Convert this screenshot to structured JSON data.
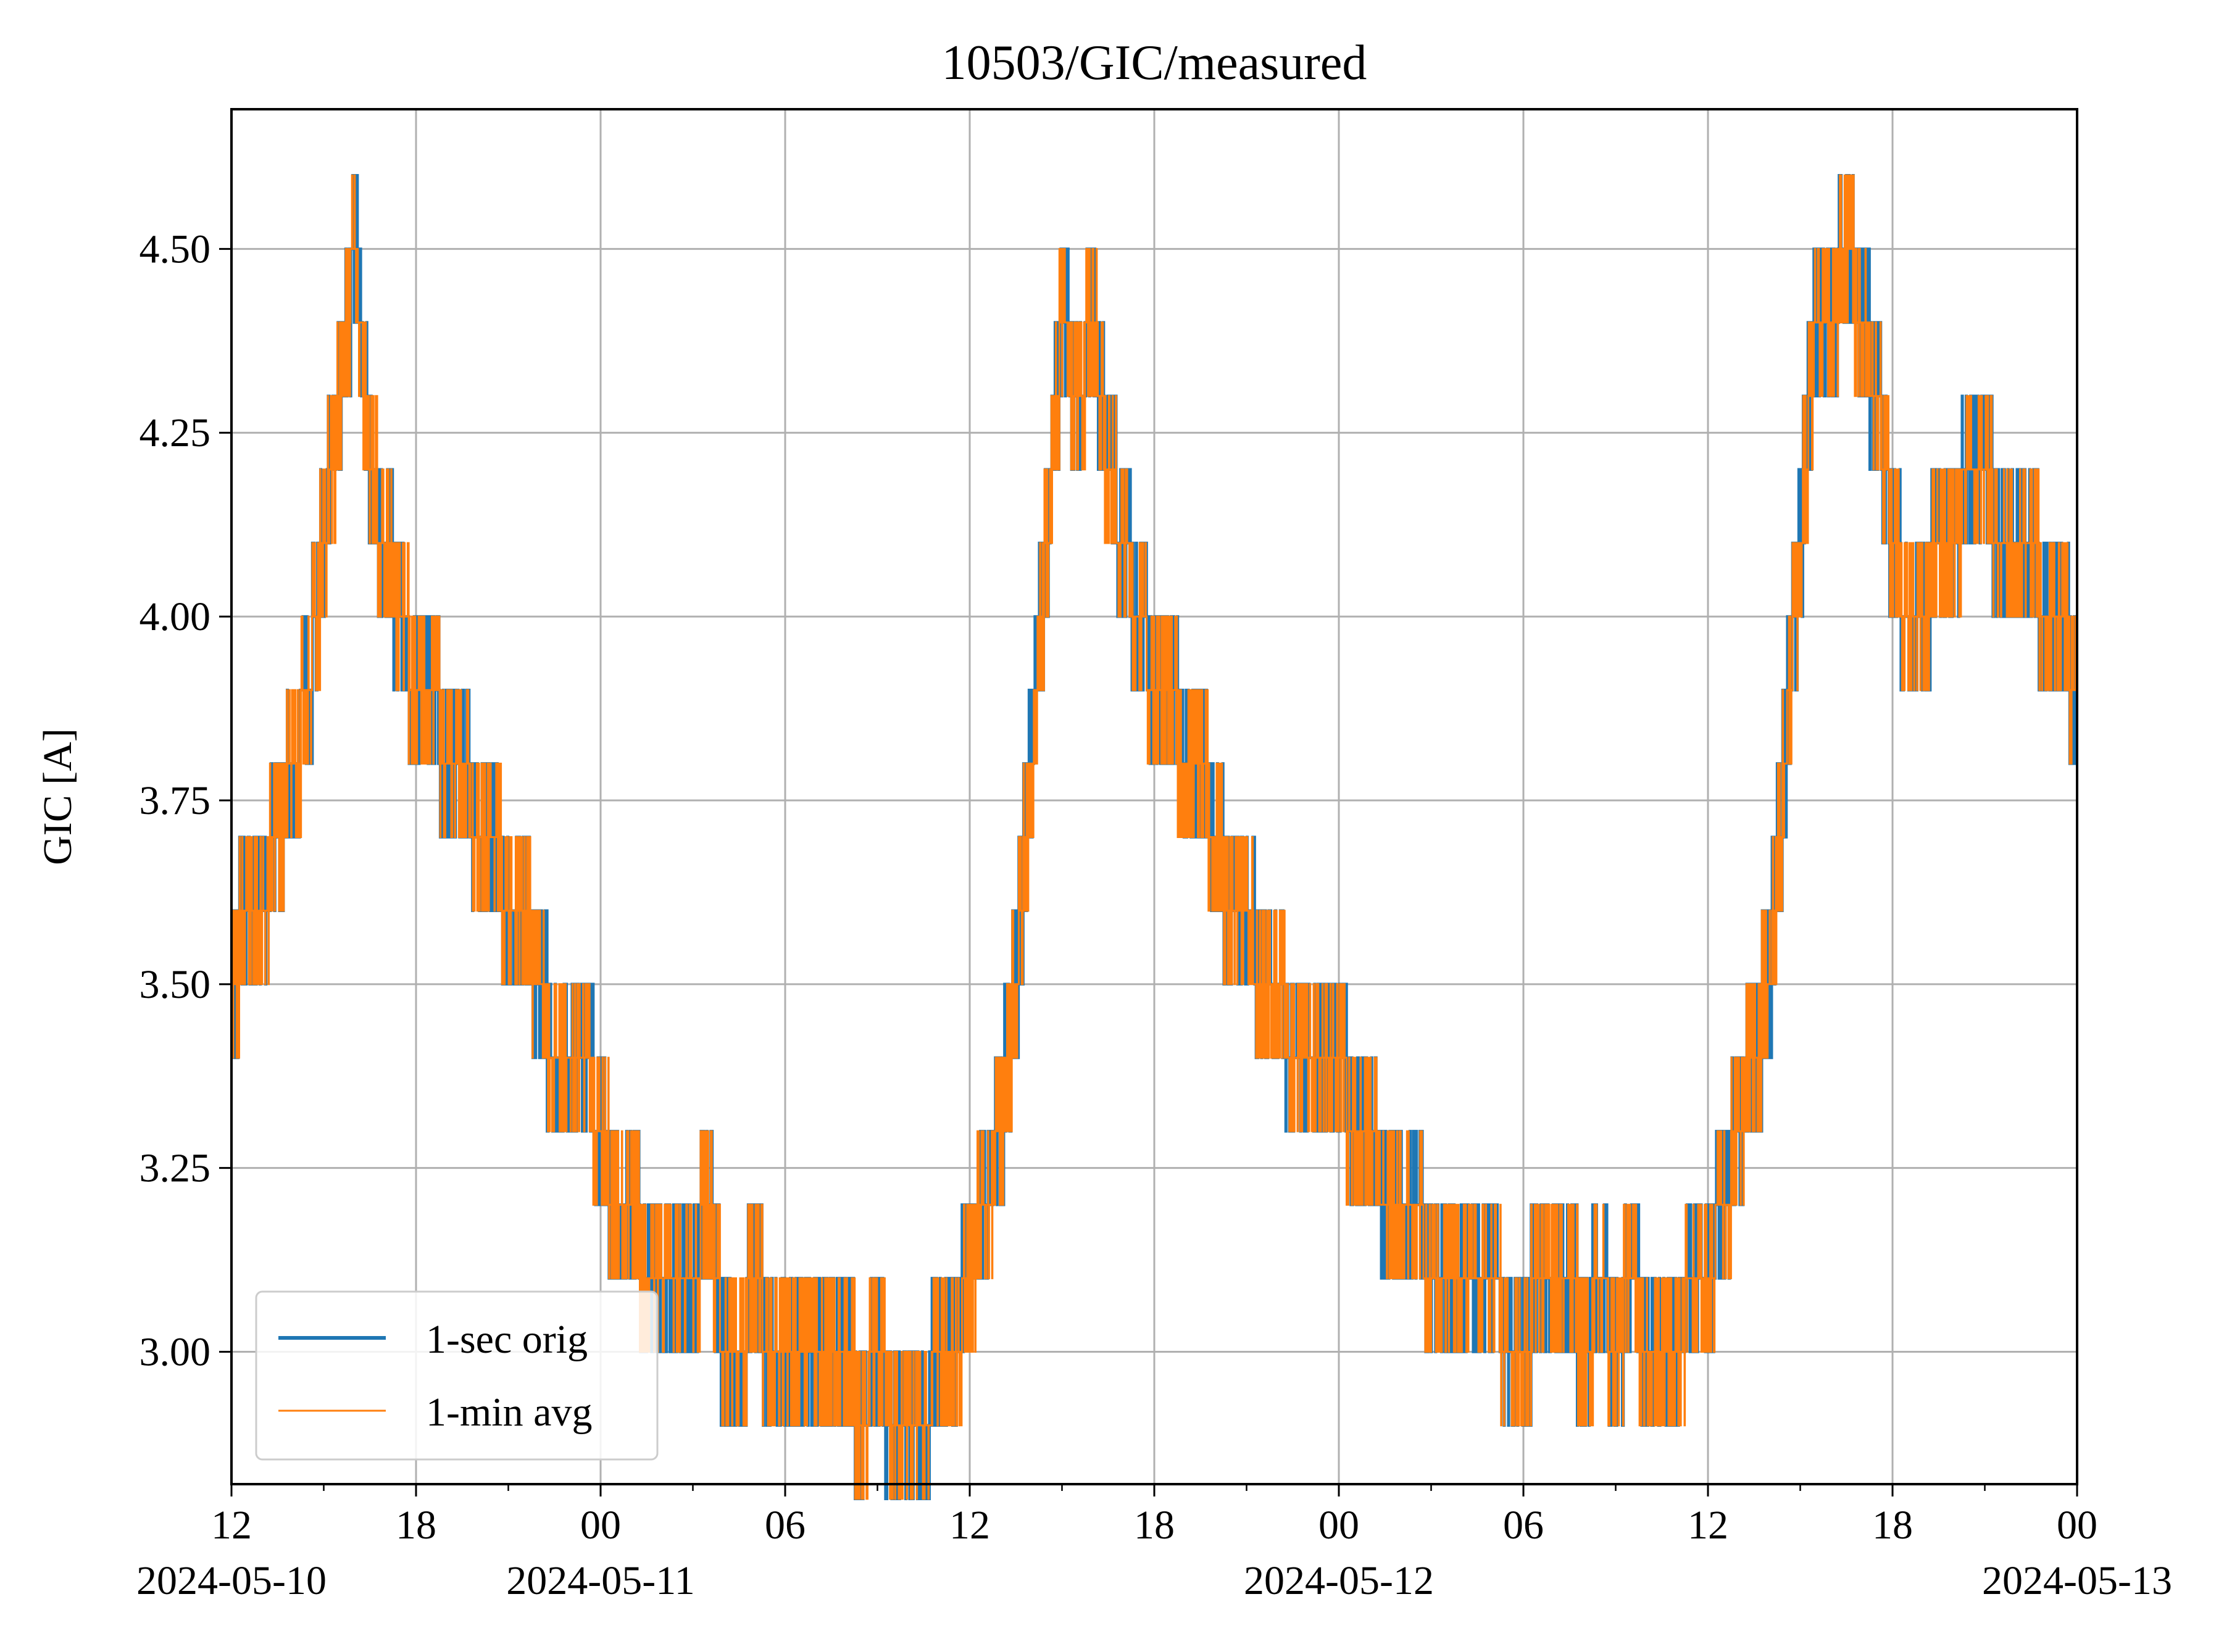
{
  "chart_data": {
    "type": "line",
    "title": "10503/GIC/measured",
    "xlabel": "",
    "ylabel": "GIC [A]",
    "x_range": [
      "2024-05-10T12:00",
      "2024-05-13T00:00"
    ],
    "ylim": [
      2.82,
      4.69
    ],
    "grid": true,
    "legend_position": "lower-left",
    "y_ticks": [
      "3.00",
      "3.25",
      "3.50",
      "3.75",
      "4.00",
      "4.25",
      "4.50"
    ],
    "x_ticks": [
      {
        "time": "2024-05-10T12:00",
        "label": "12",
        "date": "2024-05-10"
      },
      {
        "time": "2024-05-10T18:00",
        "label": "18",
        "date": ""
      },
      {
        "time": "2024-05-11T00:00",
        "label": "00",
        "date": "2024-05-11"
      },
      {
        "time": "2024-05-11T06:00",
        "label": "06",
        "date": ""
      },
      {
        "time": "2024-05-11T12:00",
        "label": "12",
        "date": ""
      },
      {
        "time": "2024-05-11T18:00",
        "label": "18",
        "date": ""
      },
      {
        "time": "2024-05-12T00:00",
        "label": "00",
        "date": "2024-05-12"
      },
      {
        "time": "2024-05-12T06:00",
        "label": "06",
        "date": ""
      },
      {
        "time": "2024-05-12T12:00",
        "label": "12",
        "date": ""
      },
      {
        "time": "2024-05-12T18:00",
        "label": "18",
        "date": ""
      },
      {
        "time": "2024-05-13T00:00",
        "label": "00",
        "date": "2024-05-13"
      }
    ],
    "series": [
      {
        "name": "1-sec orig",
        "color": "#1f77b4",
        "x": [
          "2024-05-10T12:00",
          "2024-05-10T12:30",
          "2024-05-10T13:00",
          "2024-05-10T13:30",
          "2024-05-10T14:00",
          "2024-05-10T14:30",
          "2024-05-10T15:00",
          "2024-05-10T15:30",
          "2024-05-10T16:00",
          "2024-05-10T16:30",
          "2024-05-10T17:00",
          "2024-05-10T17:30",
          "2024-05-10T18:00",
          "2024-05-10T18:30",
          "2024-05-10T19:00",
          "2024-05-10T19:30",
          "2024-05-10T20:00",
          "2024-05-10T20:30",
          "2024-05-10T21:00",
          "2024-05-10T21:30",
          "2024-05-10T22:00",
          "2024-05-10T22:30",
          "2024-05-10T23:00",
          "2024-05-10T23:30",
          "2024-05-11T00:00",
          "2024-05-11T00:30",
          "2024-05-11T01:00",
          "2024-05-11T01:30",
          "2024-05-11T02:00",
          "2024-05-11T02:30",
          "2024-05-11T03:00",
          "2024-05-11T03:30",
          "2024-05-11T04:00",
          "2024-05-11T04:30",
          "2024-05-11T05:00",
          "2024-05-11T05:30",
          "2024-05-11T06:00",
          "2024-05-11T06:30",
          "2024-05-11T07:00",
          "2024-05-11T07:30",
          "2024-05-11T08:00",
          "2024-05-11T08:30",
          "2024-05-11T09:00",
          "2024-05-11T09:30",
          "2024-05-11T10:00",
          "2024-05-11T10:30",
          "2024-05-11T11:00",
          "2024-05-11T11:30",
          "2024-05-11T12:00",
          "2024-05-11T12:30",
          "2024-05-11T13:00",
          "2024-05-11T13:30",
          "2024-05-11T14:00",
          "2024-05-11T14:30",
          "2024-05-11T15:00",
          "2024-05-11T15:30",
          "2024-05-11T16:00",
          "2024-05-11T16:30",
          "2024-05-11T17:00",
          "2024-05-11T17:30",
          "2024-05-11T18:00",
          "2024-05-11T18:30",
          "2024-05-11T19:00",
          "2024-05-11T19:30",
          "2024-05-11T20:00",
          "2024-05-11T20:30",
          "2024-05-11T21:00",
          "2024-05-11T21:30",
          "2024-05-11T22:00",
          "2024-05-11T22:30",
          "2024-05-11T23:00",
          "2024-05-11T23:30",
          "2024-05-12T00:00",
          "2024-05-12T00:30",
          "2024-05-12T01:00",
          "2024-05-12T01:30",
          "2024-05-12T02:00",
          "2024-05-12T02:30",
          "2024-05-12T03:00",
          "2024-05-12T03:30",
          "2024-05-12T04:00",
          "2024-05-12T04:30",
          "2024-05-12T05:00",
          "2024-05-12T05:30",
          "2024-05-12T06:00",
          "2024-05-12T06:30",
          "2024-05-12T07:00",
          "2024-05-12T07:30",
          "2024-05-12T08:00",
          "2024-05-12T08:30",
          "2024-05-12T09:00",
          "2024-05-12T09:30",
          "2024-05-12T10:00",
          "2024-05-12T10:30",
          "2024-05-12T11:00",
          "2024-05-12T11:30",
          "2024-05-12T12:00",
          "2024-05-12T12:30",
          "2024-05-12T13:00",
          "2024-05-12T13:30",
          "2024-05-12T14:00",
          "2024-05-12T14:30",
          "2024-05-12T15:00",
          "2024-05-12T15:30",
          "2024-05-12T16:00",
          "2024-05-12T16:30",
          "2024-05-12T17:00",
          "2024-05-12T17:30",
          "2024-05-12T18:00",
          "2024-05-12T18:30",
          "2024-05-12T19:00",
          "2024-05-12T19:30",
          "2024-05-12T20:00",
          "2024-05-12T20:30",
          "2024-05-12T21:00",
          "2024-05-12T21:30",
          "2024-05-12T22:00",
          "2024-05-12T22:30",
          "2024-05-12T23:00",
          "2024-05-12T23:30",
          "2024-05-13T00:00"
        ],
        "y": [
          3.5,
          3.6,
          3.6,
          3.7,
          3.8,
          3.9,
          4.1,
          4.3,
          4.5,
          4.2,
          4.1,
          4.0,
          3.9,
          3.9,
          3.8,
          3.8,
          3.7,
          3.7,
          3.6,
          3.6,
          3.5,
          3.4,
          3.4,
          3.4,
          3.3,
          3.2,
          3.2,
          3.1,
          3.1,
          3.1,
          3.1,
          3.2,
          3.0,
          3.0,
          3.1,
          3.0,
          3.0,
          3.0,
          3.0,
          3.0,
          3.0,
          2.9,
          3.0,
          2.9,
          2.9,
          2.9,
          3.0,
          3.0,
          3.1,
          3.2,
          3.3,
          3.5,
          3.8,
          4.1,
          4.4,
          4.3,
          4.4,
          4.2,
          4.1,
          4.0,
          3.9,
          3.9,
          3.8,
          3.8,
          3.7,
          3.6,
          3.6,
          3.5,
          3.5,
          3.4,
          3.4,
          3.4,
          3.4,
          3.3,
          3.3,
          3.2,
          3.2,
          3.2,
          3.1,
          3.1,
          3.1,
          3.1,
          3.1,
          3.0,
          3.0,
          3.1,
          3.1,
          3.1,
          3.0,
          3.1,
          3.0,
          3.1,
          3.0,
          3.0,
          3.0,
          3.1,
          3.1,
          3.2,
          3.3,
          3.4,
          3.5,
          3.8,
          4.1,
          4.4,
          4.4,
          4.5,
          4.4,
          4.3,
          4.1,
          4.0,
          4.0,
          4.1,
          4.1,
          4.2,
          4.2,
          4.1,
          4.1,
          4.1,
          4.0,
          4.0,
          3.9
        ]
      },
      {
        "name": "1-min avg",
        "color": "#ff7f0e",
        "x": [
          "2024-05-10T12:00",
          "2024-05-10T12:30",
          "2024-05-10T13:00",
          "2024-05-10T13:30",
          "2024-05-10T14:00",
          "2024-05-10T14:30",
          "2024-05-10T15:00",
          "2024-05-10T15:30",
          "2024-05-10T16:00",
          "2024-05-10T16:30",
          "2024-05-10T17:00",
          "2024-05-10T17:30",
          "2024-05-10T18:00",
          "2024-05-10T18:30",
          "2024-05-10T19:00",
          "2024-05-10T19:30",
          "2024-05-10T20:00",
          "2024-05-10T20:30",
          "2024-05-10T21:00",
          "2024-05-10T21:30",
          "2024-05-10T22:00",
          "2024-05-10T22:30",
          "2024-05-10T23:00",
          "2024-05-10T23:30",
          "2024-05-11T00:00",
          "2024-05-11T00:30",
          "2024-05-11T01:00",
          "2024-05-11T01:30",
          "2024-05-11T02:00",
          "2024-05-11T02:30",
          "2024-05-11T03:00",
          "2024-05-11T03:30",
          "2024-05-11T04:00",
          "2024-05-11T04:30",
          "2024-05-11T05:00",
          "2024-05-11T05:30",
          "2024-05-11T06:00",
          "2024-05-11T06:30",
          "2024-05-11T07:00",
          "2024-05-11T07:30",
          "2024-05-11T08:00",
          "2024-05-11T08:30",
          "2024-05-11T09:00",
          "2024-05-11T09:30",
          "2024-05-11T10:00",
          "2024-05-11T10:30",
          "2024-05-11T11:00",
          "2024-05-11T11:30",
          "2024-05-11T12:00",
          "2024-05-11T12:30",
          "2024-05-11T13:00",
          "2024-05-11T13:30",
          "2024-05-11T14:00",
          "2024-05-11T14:30",
          "2024-05-11T15:00",
          "2024-05-11T15:30",
          "2024-05-11T16:00",
          "2024-05-11T16:30",
          "2024-05-11T17:00",
          "2024-05-11T17:30",
          "2024-05-11T18:00",
          "2024-05-11T18:30",
          "2024-05-11T19:00",
          "2024-05-11T19:30",
          "2024-05-11T20:00",
          "2024-05-11T20:30",
          "2024-05-11T21:00",
          "2024-05-11T21:30",
          "2024-05-11T22:00",
          "2024-05-11T22:30",
          "2024-05-11T23:00",
          "2024-05-11T23:30",
          "2024-05-12T00:00",
          "2024-05-12T00:30",
          "2024-05-12T01:00",
          "2024-05-12T01:30",
          "2024-05-12T02:00",
          "2024-05-12T02:30",
          "2024-05-12T03:00",
          "2024-05-12T03:30",
          "2024-05-12T04:00",
          "2024-05-12T04:30",
          "2024-05-12T05:00",
          "2024-05-12T05:30",
          "2024-05-12T06:00",
          "2024-05-12T06:30",
          "2024-05-12T07:00",
          "2024-05-12T07:30",
          "2024-05-12T08:00",
          "2024-05-12T08:30",
          "2024-05-12T09:00",
          "2024-05-12T09:30",
          "2024-05-12T10:00",
          "2024-05-12T10:30",
          "2024-05-12T11:00",
          "2024-05-12T11:30",
          "2024-05-12T12:00",
          "2024-05-12T12:30",
          "2024-05-12T13:00",
          "2024-05-12T13:30",
          "2024-05-12T14:00",
          "2024-05-12T14:30",
          "2024-05-12T15:00",
          "2024-05-12T15:30",
          "2024-05-12T16:00",
          "2024-05-12T16:30",
          "2024-05-12T17:00",
          "2024-05-12T17:30",
          "2024-05-12T18:00",
          "2024-05-12T18:30",
          "2024-05-12T19:00",
          "2024-05-12T19:30",
          "2024-05-12T20:00",
          "2024-05-12T20:30",
          "2024-05-12T21:00",
          "2024-05-12T21:30",
          "2024-05-12T22:00",
          "2024-05-12T22:30",
          "2024-05-12T23:00",
          "2024-05-12T23:30",
          "2024-05-13T00:00"
        ],
        "y": [
          3.5,
          3.6,
          3.6,
          3.7,
          3.8,
          3.9,
          4.1,
          4.3,
          4.5,
          4.2,
          4.1,
          4.0,
          3.9,
          3.9,
          3.8,
          3.8,
          3.7,
          3.7,
          3.6,
          3.6,
          3.5,
          3.4,
          3.4,
          3.4,
          3.3,
          3.2,
          3.2,
          3.1,
          3.1,
          3.1,
          3.1,
          3.2,
          3.0,
          3.0,
          3.1,
          3.0,
          3.0,
          3.0,
          3.0,
          3.0,
          3.0,
          2.9,
          3.0,
          2.9,
          2.9,
          2.9,
          3.0,
          3.0,
          3.1,
          3.2,
          3.3,
          3.5,
          3.8,
          4.1,
          4.4,
          4.3,
          4.4,
          4.2,
          4.1,
          4.0,
          3.9,
          3.9,
          3.8,
          3.8,
          3.7,
          3.6,
          3.6,
          3.5,
          3.5,
          3.4,
          3.4,
          3.4,
          3.4,
          3.3,
          3.3,
          3.2,
          3.2,
          3.2,
          3.1,
          3.1,
          3.1,
          3.1,
          3.1,
          3.0,
          3.0,
          3.1,
          3.1,
          3.1,
          3.0,
          3.1,
          3.0,
          3.1,
          3.0,
          3.0,
          3.0,
          3.1,
          3.1,
          3.2,
          3.3,
          3.4,
          3.5,
          3.8,
          4.1,
          4.4,
          4.4,
          4.5,
          4.4,
          4.3,
          4.1,
          4.0,
          4.0,
          4.1,
          4.1,
          4.2,
          4.2,
          4.1,
          4.1,
          4.1,
          4.0,
          4.0,
          3.9
        ]
      }
    ]
  }
}
